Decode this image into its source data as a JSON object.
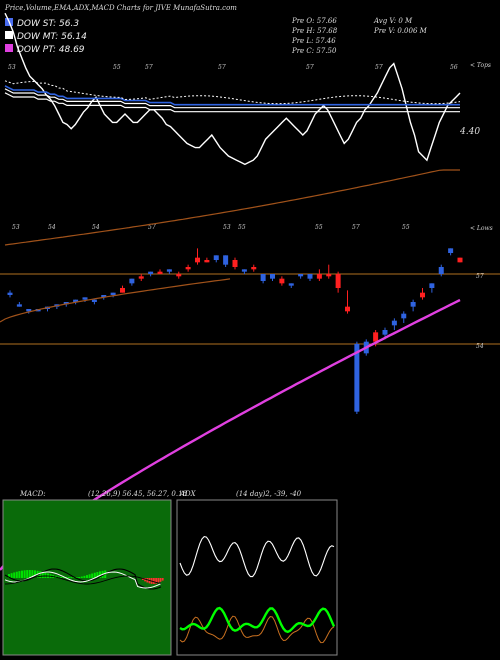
{
  "header": {
    "title": "Price,Volume,EMA,ADX,MACD Charts for JIVE MunafaSutra.com",
    "legend": [
      {
        "label": "DOW ST: 56.3",
        "color": "#4a6df0"
      },
      {
        "label": "DOW MT: 56.14",
        "color": "#ffffff"
      },
      {
        "label": "DOW PT: 48.69",
        "color": "#e040e0"
      }
    ],
    "ohlc": {
      "open": "Pre  O: 57.66",
      "high": "Pre  H: 57.68",
      "low": "Pre  L: 57.46",
      "close": "Pre  C: 57.50",
      "avg_volume": "Avg V: 0  M",
      "pre_volume": "Pre  V: 0.006  M"
    }
  },
  "indicator_panel": {
    "upper_right_label": "< Tops",
    "lower_right_label": "< Lows",
    "value_label": "4.40",
    "top_numbers": [
      "53",
      "55",
      "57",
      "57",
      "57",
      "57",
      "56"
    ],
    "bottom_numbers": [
      "53",
      "54",
      "54",
      "57",
      "53",
      "55",
      "55",
      "57",
      "55"
    ]
  },
  "price_panel": {
    "level_labels": [
      "57",
      "54"
    ]
  },
  "macd": {
    "label": "MACD:",
    "params": "(12,26,9) 56.45, 56.27, 0.18"
  },
  "adx": {
    "label": "ADX",
    "params": "(14 day)2, -39, -40"
  },
  "chart_data": [
    {
      "type": "line",
      "name": "indicator-lines",
      "series": [
        {
          "values": [
            108,
            104,
            99,
            92,
            87,
            82,
            78,
            76,
            74,
            72,
            69,
            67,
            64,
            60,
            56,
            55,
            53,
            55,
            58,
            61,
            63,
            66,
            68,
            64,
            60,
            58,
            56,
            56,
            58,
            60,
            58,
            56,
            56,
            58,
            60,
            62,
            62,
            60,
            58,
            55,
            54,
            52,
            50,
            48,
            46,
            45,
            44,
            44,
            46,
            48,
            50,
            47,
            44,
            42,
            40,
            39,
            38,
            37,
            36,
            37,
            38,
            40,
            44,
            48,
            50,
            52,
            54,
            56,
            58,
            56,
            54,
            52,
            50,
            52,
            56,
            60,
            62,
            64,
            62,
            58,
            54,
            50,
            46,
            48,
            52,
            56,
            58,
            62,
            64,
            67,
            70,
            74,
            78,
            82,
            84,
            78,
            72,
            64,
            56,
            50,
            42,
            40,
            38,
            44,
            50,
            56,
            60,
            64,
            66,
            68,
            70
          ]
        },
        {
          "values": [
            72,
            71,
            70,
            70,
            70,
            70,
            70,
            70,
            69,
            69,
            69,
            68,
            68,
            67,
            67,
            66,
            66,
            66,
            66,
            66,
            66,
            66,
            66,
            66,
            66,
            66,
            66,
            66,
            66,
            65,
            65,
            65,
            65,
            65,
            65,
            64,
            64,
            64,
            64,
            64,
            64,
            63,
            63,
            63,
            63,
            63,
            63,
            63,
            63,
            63,
            63,
            63,
            63,
            63,
            63,
            63,
            63,
            63,
            63,
            63,
            63,
            63,
            63,
            63,
            63,
            63,
            63,
            63,
            63,
            63,
            63,
            63,
            63,
            63,
            63,
            63,
            63,
            63,
            63,
            63,
            63,
            63,
            63,
            63,
            63,
            63,
            63,
            63,
            63,
            63,
            63,
            63,
            63,
            63,
            63,
            63,
            63,
            63,
            63,
            63,
            63,
            63,
            63,
            63,
            63,
            63,
            63,
            63,
            63,
            63,
            63
          ]
        }
      ]
    },
    {
      "type": "candlestick",
      "name": "price-candles",
      "level_lines": [
        57,
        54
      ],
      "candles": [
        {
          "color": "blue",
          "open": 56.1,
          "close": 56.2,
          "high": 56.3,
          "low": 56.0
        },
        {
          "color": "blue",
          "open": 55.6,
          "close": 55.7,
          "high": 55.8,
          "low": 55.6
        },
        {
          "color": "blue",
          "open": 55.4,
          "close": 55.5,
          "high": 55.5,
          "low": 55.3
        },
        {
          "color": "blue",
          "open": 55.4,
          "close": 55.5,
          "high": 55.5,
          "low": 55.4
        },
        {
          "color": "blue",
          "open": 55.5,
          "close": 55.6,
          "high": 55.6,
          "low": 55.4
        },
        {
          "color": "blue",
          "open": 55.6,
          "close": 55.7,
          "high": 55.7,
          "low": 55.5
        },
        {
          "color": "blue",
          "open": 55.7,
          "close": 55.8,
          "high": 55.8,
          "low": 55.6
        },
        {
          "color": "blue",
          "open": 55.8,
          "close": 55.9,
          "high": 55.9,
          "low": 55.7
        },
        {
          "color": "blue",
          "open": 55.9,
          "close": 56.0,
          "high": 56.0,
          "low": 55.8
        },
        {
          "color": "blue",
          "open": 55.8,
          "close": 55.9,
          "high": 55.9,
          "low": 55.7
        },
        {
          "color": "blue",
          "open": 56.0,
          "close": 56.1,
          "high": 56.1,
          "low": 55.9
        },
        {
          "color": "blue",
          "open": 56.1,
          "close": 56.2,
          "high": 56.2,
          "low": 56.0
        },
        {
          "color": "red",
          "open": 56.4,
          "close": 56.2,
          "high": 56.5,
          "low": 56.2
        },
        {
          "color": "blue",
          "open": 56.6,
          "close": 56.8,
          "high": 56.8,
          "low": 56.5
        },
        {
          "color": "red",
          "open": 56.9,
          "close": 56.8,
          "high": 57.0,
          "low": 56.7
        },
        {
          "color": "blue",
          "open": 57.0,
          "close": 57.1,
          "high": 57.1,
          "low": 56.9
        },
        {
          "color": "red",
          "open": 57.1,
          "close": 57.0,
          "high": 57.2,
          "low": 57.0
        },
        {
          "color": "blue",
          "open": 57.1,
          "close": 57.2,
          "high": 57.2,
          "low": 57.0
        },
        {
          "color": "red",
          "open": 57.0,
          "close": 56.9,
          "high": 57.1,
          "low": 56.8
        },
        {
          "color": "red",
          "open": 57.3,
          "close": 57.2,
          "high": 57.4,
          "low": 57.1
        },
        {
          "color": "red",
          "open": 57.7,
          "close": 57.5,
          "high": 58.1,
          "low": 57.4
        },
        {
          "color": "red",
          "open": 57.6,
          "close": 57.5,
          "high": 57.7,
          "low": 57.5
        },
        {
          "color": "blue",
          "open": 57.6,
          "close": 57.8,
          "high": 57.8,
          "low": 57.5
        },
        {
          "color": "blue",
          "open": 57.4,
          "close": 57.8,
          "high": 57.8,
          "low": 57.3
        },
        {
          "color": "red",
          "open": 57.6,
          "close": 57.3,
          "high": 57.7,
          "low": 57.2
        },
        {
          "color": "blue",
          "open": 57.1,
          "close": 57.2,
          "high": 57.2,
          "low": 57.0
        },
        {
          "color": "red",
          "open": 57.3,
          "close": 57.2,
          "high": 57.4,
          "low": 57.1
        },
        {
          "color": "blue",
          "open": 56.7,
          "close": 57.0,
          "high": 57.0,
          "low": 56.6
        },
        {
          "color": "blue",
          "open": 56.8,
          "close": 57.0,
          "high": 57.0,
          "low": 56.7
        },
        {
          "color": "red",
          "open": 56.8,
          "close": 56.6,
          "high": 56.9,
          "low": 56.5
        },
        {
          "color": "blue",
          "open": 56.5,
          "close": 56.6,
          "high": 56.6,
          "low": 56.4
        },
        {
          "color": "blue",
          "open": 56.9,
          "close": 57.0,
          "high": 57.0,
          "low": 56.8
        },
        {
          "color": "blue",
          "open": 56.8,
          "close": 57.0,
          "high": 57.0,
          "low": 56.7
        },
        {
          "color": "red",
          "open": 57.0,
          "close": 56.8,
          "high": 57.2,
          "low": 56.7
        },
        {
          "color": "red",
          "open": 57.0,
          "close": 56.9,
          "high": 57.4,
          "low": 56.8
        },
        {
          "color": "red",
          "open": 57.0,
          "close": 56.4,
          "high": 57.1,
          "low": 56.2
        },
        {
          "color": "red",
          "open": 55.6,
          "close": 55.4,
          "high": 56.3,
          "low": 55.3
        },
        {
          "color": "blue",
          "open": 51.1,
          "close": 54.0,
          "high": 54.1,
          "low": 51.0
        },
        {
          "color": "blue",
          "open": 53.6,
          "close": 54.1,
          "high": 54.2,
          "low": 53.5
        },
        {
          "color": "red",
          "open": 54.5,
          "close": 54.1,
          "high": 54.6,
          "low": 53.9
        },
        {
          "color": "blue",
          "open": 54.4,
          "close": 54.6,
          "high": 54.7,
          "low": 54.2
        },
        {
          "color": "blue",
          "open": 54.8,
          "close": 55.0,
          "high": 55.1,
          "low": 54.6
        },
        {
          "color": "blue",
          "open": 55.1,
          "close": 55.3,
          "high": 55.4,
          "low": 54.9
        },
        {
          "color": "blue",
          "open": 55.6,
          "close": 55.8,
          "high": 55.9,
          "low": 55.4
        },
        {
          "color": "red",
          "open": 56.2,
          "close": 56.0,
          "high": 56.4,
          "low": 55.9
        },
        {
          "color": "blue",
          "open": 56.4,
          "close": 56.6,
          "high": 56.6,
          "low": 56.2
        },
        {
          "color": "blue",
          "open": 57.0,
          "close": 57.3,
          "high": 57.4,
          "low": 56.9
        },
        {
          "color": "blue",
          "open": 57.9,
          "close": 58.1,
          "high": 58.1,
          "low": 57.8
        },
        {
          "color": "red",
          "open": 57.7,
          "close": 57.5,
          "high": 57.7,
          "low": 57.5
        }
      ]
    },
    {
      "type": "bar",
      "name": "macd-histogram"
    },
    {
      "type": "line",
      "name": "adx-lines"
    }
  ]
}
